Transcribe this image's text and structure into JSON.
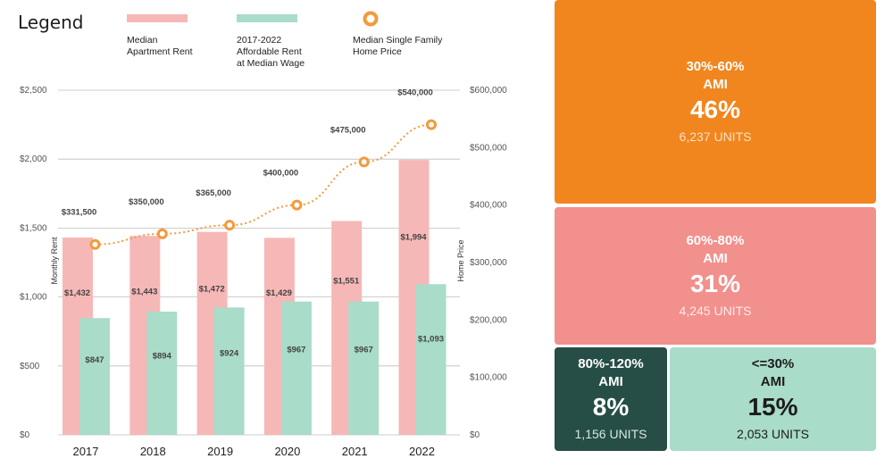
{
  "legend": {
    "title": "Legend",
    "items": [
      {
        "label_lines": [
          "Median",
          "Apartment Rent"
        ],
        "color": "#f6b8b7",
        "shape": "bar"
      },
      {
        "label_lines": [
          "2017-2022",
          "Affordable Rent",
          "at Median Wage"
        ],
        "color": "#a9dcc9",
        "shape": "bar"
      },
      {
        "label_lines": [
          "Median Single Family",
          "Home Price"
        ],
        "color": "#f29a3b",
        "shape": "circle"
      }
    ]
  },
  "chart_data": {
    "type": "bar",
    "categories": [
      "2017",
      "2018",
      "2019",
      "2020",
      "2021",
      "2022"
    ],
    "series": [
      {
        "name": "Median Apartment Rent",
        "axis": "left",
        "values": [
          1432,
          1443,
          1472,
          1429,
          1551,
          1994
        ],
        "labels": [
          "$1,432",
          "$1,443",
          "$1,472",
          "$1,429",
          "$1,551",
          "$1,994"
        ],
        "color": "#f6b8b7"
      },
      {
        "name": "2017-2022 Affordable Rent at Median Wage",
        "axis": "left",
        "values": [
          847,
          894,
          924,
          967,
          967,
          1093
        ],
        "labels": [
          "$847",
          "$894",
          "$924",
          "$967",
          "$967",
          "$1,093"
        ],
        "color": "#a9dcc9"
      },
      {
        "name": "Median Single Family Home Price",
        "axis": "right",
        "type": "line",
        "values": [
          331500,
          350000,
          365000,
          400000,
          475000,
          540000
        ],
        "labels": [
          "$331,500",
          "$350,000",
          "$365,000",
          "$400,000",
          "$475,000",
          "$540,000"
        ],
        "color": "#f29a3b"
      }
    ],
    "ylabel": "Monthly Rent",
    "y2label": "Home Price",
    "ylim": [
      0,
      2500
    ],
    "y2lim": [
      0,
      600000
    ],
    "yticks": [
      0,
      500,
      1000,
      1500,
      2000,
      2500
    ],
    "ytick_labels": [
      "$0",
      "$500",
      "$1,000",
      "$1,500",
      "$2,000",
      "$2,500"
    ],
    "y2ticks": [
      0,
      100000,
      200000,
      300000,
      400000,
      500000,
      600000
    ],
    "y2tick_labels": [
      "$0",
      "$100,000",
      "$200,000",
      "$300,000",
      "$400,000",
      "$500,000",
      "$600,000"
    ],
    "grid": true
  },
  "ami_tiles": [
    {
      "range_lines": [
        "30%-60%",
        "AMI"
      ],
      "percent": "46%",
      "units": "6,237 UNITS",
      "bg": "#f1861f",
      "fg": "#ffffff",
      "units_fg": "#fde1c2"
    },
    {
      "range_lines": [
        "60%-80%",
        "AMI"
      ],
      "percent": "31%",
      "units": "4,245 UNITS",
      "bg": "#f2908d",
      "fg": "#ffffff",
      "units_fg": "#ffeceb"
    },
    {
      "range_lines": [
        "80%-120%",
        "AMI"
      ],
      "percent": "8%",
      "units": "1,156 UNITS",
      "bg": "#264e46",
      "fg": "#ffffff",
      "units_fg": "#d6e6e1"
    },
    {
      "range_lines": [
        "<=30%",
        "AMI"
      ],
      "percent": "15%",
      "units": "2,053 UNITS",
      "bg": "#a9dcc9",
      "fg": "#1c1c1c",
      "units_fg": "#1c1c1c"
    }
  ]
}
